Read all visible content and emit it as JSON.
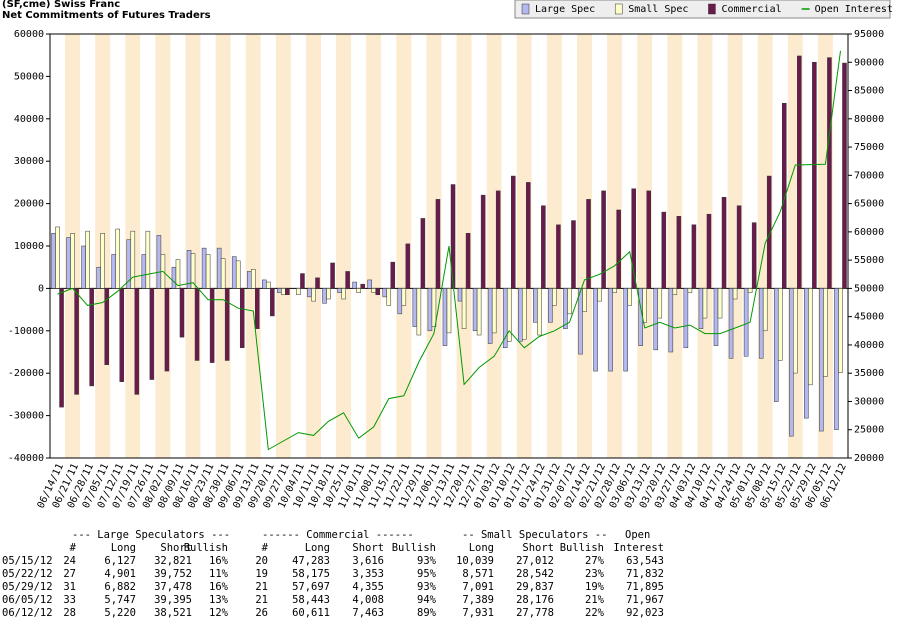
{
  "chart_data": {
    "type": "bar",
    "title": "(SF,cme) Swiss Franc",
    "subtitle": "Net Commitments of Futures Traders",
    "categories": [
      "06/14/11",
      "06/21/11",
      "06/28/11",
      "07/05/11",
      "07/12/11",
      "07/19/11",
      "07/26/11",
      "08/02/11",
      "08/09/11",
      "08/16/11",
      "08/23/11",
      "08/30/11",
      "09/06/11",
      "09/13/11",
      "09/20/11",
      "09/27/11",
      "10/04/11",
      "10/11/11",
      "10/18/11",
      "10/25/11",
      "11/01/11",
      "11/08/11",
      "11/15/11",
      "11/22/11",
      "11/29/11",
      "12/06/11",
      "12/13/11",
      "12/20/11",
      "12/27/11",
      "01/03/12",
      "01/10/12",
      "01/17/12",
      "01/24/12",
      "01/31/12",
      "02/07/12",
      "02/14/12",
      "02/21/12",
      "02/28/12",
      "03/06/12",
      "03/13/12",
      "03/20/12",
      "03/27/12",
      "04/03/12",
      "04/10/12",
      "04/17/12",
      "04/24/12",
      "05/01/12",
      "05/08/12",
      "05/15/12",
      "05/22/12",
      "05/29/12",
      "06/05/12",
      "06/12/12"
    ],
    "series": [
      {
        "name": "Large Spec",
        "color": "#b4b8f0",
        "values": [
          13000,
          12000,
          10000,
          5000,
          8000,
          11500,
          8000,
          12500,
          5000,
          9000,
          9500,
          9500,
          7500,
          4000,
          2000,
          -1000,
          0,
          -2000,
          -3500,
          -1000,
          1500,
          2000,
          -2000,
          -6000,
          -9000,
          -10000,
          -13500,
          -3000,
          -10000,
          -13000,
          -14000,
          -12500,
          -8000,
          -8000,
          -9500,
          -15500,
          -19500,
          -19500,
          -19500,
          -13500,
          -14500,
          -15000,
          -14000,
          -9500,
          -13500,
          -16500,
          -16000,
          -16500,
          -26694,
          -34851,
          -30596,
          -33648,
          -33301
        ]
      },
      {
        "name": "Small Spec",
        "color": "#ffffcc",
        "values": [
          14500,
          13000,
          13500,
          13000,
          14000,
          13500,
          13500,
          8000,
          6800,
          8200,
          8000,
          7000,
          6500,
          4500,
          1500,
          -1500,
          -1500,
          -3000,
          -2500,
          -2500,
          -1000,
          -1000,
          -4000,
          -4000,
          -11000,
          -9000,
          -10500,
          -9500,
          -11000,
          -10500,
          -12500,
          -12000,
          -11000,
          -4000,
          -6000,
          -5500,
          -3000,
          -1000,
          -4000,
          -8000,
          -7000,
          -1500,
          -1000,
          -7000,
          -7000,
          -2500,
          -1000,
          -10000,
          -16973,
          -19971,
          -22746,
          -20787,
          -19847
        ]
      },
      {
        "name": "Commercial",
        "color": "#6b1a4c",
        "values": [
          -28000,
          -25000,
          -23000,
          -18000,
          -22000,
          -25000,
          -21500,
          -19500,
          -11500,
          -17000,
          -17500,
          -17000,
          -14000,
          -9500,
          -6500,
          -1500,
          3500,
          2500,
          6000,
          4000,
          1000,
          -1500,
          6200,
          10500,
          16500,
          21000,
          24500,
          13000,
          22000,
          23000,
          26500,
          25000,
          19500,
          15000,
          16000,
          21000,
          23000,
          18500,
          23500,
          23000,
          18000,
          17000,
          15000,
          17500,
          21500,
          19500,
          15500,
          26500,
          43667,
          54822,
          53342,
          54435,
          53148
        ]
      },
      {
        "name": "Open Interest",
        "type": "line",
        "axis": "y2",
        "color": "#009900",
        "values": [
          49000,
          50000,
          47000,
          47500,
          49500,
          52000,
          52500,
          53000,
          50500,
          51000,
          48000,
          48000,
          46500,
          46000,
          21500,
          23000,
          24500,
          24000,
          26500,
          28000,
          23500,
          25500,
          30500,
          31000,
          37000,
          42000,
          57500,
          33000,
          36000,
          38000,
          42500,
          39500,
          41500,
          42500,
          44000,
          51500,
          52500,
          54000,
          56500,
          43000,
          44000,
          43000,
          43500,
          42000,
          42000,
          43000,
          44000,
          58000,
          63543,
          71832,
          71895,
          71967,
          92023
        ]
      }
    ],
    "ylim": [
      -40000,
      60000
    ],
    "yticks": [
      -40000,
      -30000,
      -20000,
      -10000,
      0,
      10000,
      20000,
      30000,
      40000,
      50000,
      60000
    ],
    "y2lim": [
      20000,
      95000
    ],
    "y2ticks": [
      20000,
      25000,
      30000,
      35000,
      40000,
      45000,
      50000,
      55000,
      60000,
      65000,
      70000,
      75000,
      80000,
      85000,
      90000,
      95000
    ],
    "band_colors": [
      "#ffffff",
      "#fdebd0"
    ]
  },
  "table": {
    "group_headers": [
      "--- Large Speculators ---",
      "------ Commercial ------",
      "-- Small Speculators --",
      "Open"
    ],
    "columns": [
      "#",
      "Long",
      "Short",
      "Bullish",
      "#",
      "Long",
      "Short",
      "Bullish",
      "Long",
      "Short",
      "Bullish",
      "Interest"
    ],
    "rows": [
      [
        "05/15/12",
        "24",
        "6,127",
        "32,821",
        "16%",
        "20",
        "47,283",
        "3,616",
        "93%",
        "10,039",
        "27,012",
        "27%",
        "63,543"
      ],
      [
        "05/22/12",
        "27",
        "4,901",
        "39,752",
        "11%",
        "19",
        "58,175",
        "3,353",
        "95%",
        "8,571",
        "28,542",
        "23%",
        "71,832"
      ],
      [
        "05/29/12",
        "31",
        "6,882",
        "37,478",
        "16%",
        "21",
        "57,697",
        "4,355",
        "93%",
        "7,091",
        "29,837",
        "19%",
        "71,895"
      ],
      [
        "06/05/12",
        "33",
        "5,747",
        "39,395",
        "13%",
        "21",
        "58,443",
        "4,008",
        "94%",
        "7,389",
        "28,176",
        "21%",
        "71,967"
      ],
      [
        "06/12/12",
        "28",
        "5,220",
        "38,521",
        "12%",
        "26",
        "60,611",
        "7,463",
        "89%",
        "7,931",
        "27,778",
        "22%",
        "92,023"
      ]
    ]
  }
}
